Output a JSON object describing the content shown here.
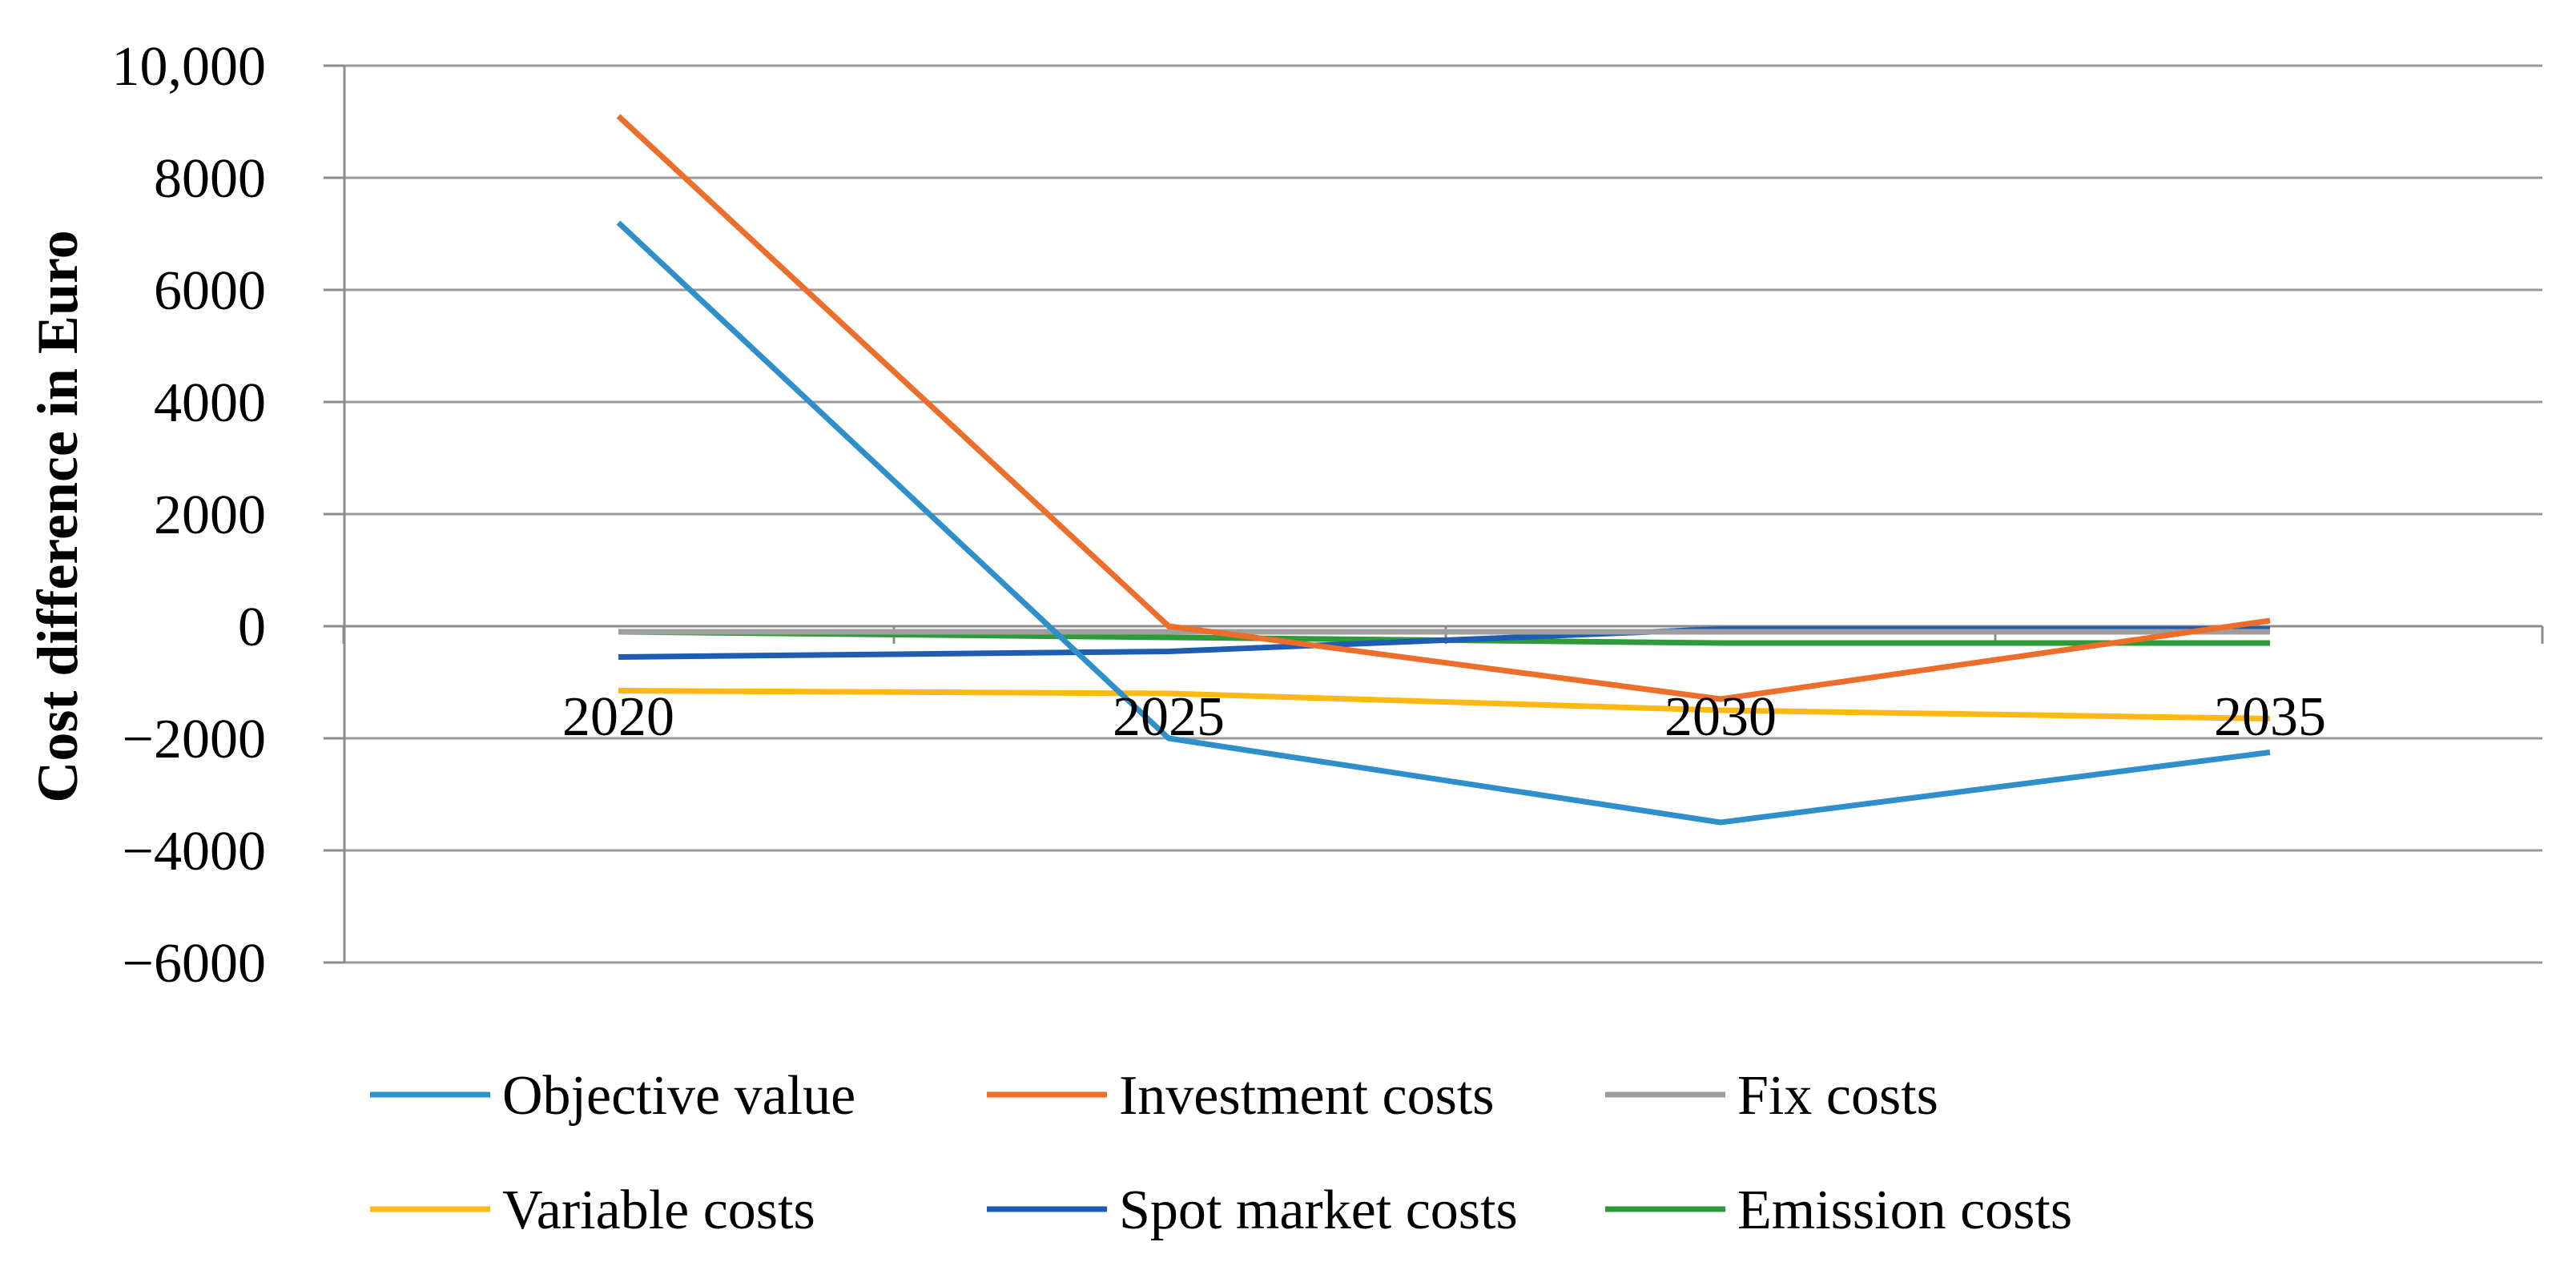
{
  "chart_data": {
    "type": "line",
    "title": "",
    "xlabel": "",
    "ylabel": "Cost difference in Euro",
    "categories": [
      "2020",
      "2025",
      "2030",
      "2035"
    ],
    "ylim": [
      -6000,
      10000
    ],
    "y_ticks": [
      {
        "value": 10000,
        "label": "10,000"
      },
      {
        "value": 8000,
        "label": "8000"
      },
      {
        "value": 6000,
        "label": "6000"
      },
      {
        "value": 4000,
        "label": "4000"
      },
      {
        "value": 2000,
        "label": "2000"
      },
      {
        "value": 0,
        "label": "0"
      },
      {
        "value": -2000,
        "label": "−2000"
      },
      {
        "value": -4000,
        "label": "−4000"
      },
      {
        "value": -6000,
        "label": "−6000"
      }
    ],
    "grid": true,
    "legend_position": "bottom",
    "series": [
      {
        "name": "Objective value",
        "color": "#2E8FCB",
        "values": [
          7200,
          -2000,
          -3500,
          -2250
        ]
      },
      {
        "name": "Investment costs",
        "color": "#ED6D2A",
        "values": [
          9100,
          0,
          -1300,
          100
        ]
      },
      {
        "name": "Fix costs",
        "color": "#9E9E9E",
        "values": [
          -100,
          -100,
          -100,
          -100
        ]
      },
      {
        "name": "Variable costs",
        "color": "#FDB813",
        "values": [
          -1150,
          -1200,
          -1500,
          -1650
        ]
      },
      {
        "name": "Spot market costs",
        "color": "#1F5DB3",
        "values": [
          -550,
          -450,
          -50,
          -50
        ]
      },
      {
        "name": "Emission costs",
        "color": "#2E9B3A",
        "values": [
          -100,
          -200,
          -300,
          -300
        ]
      }
    ]
  }
}
